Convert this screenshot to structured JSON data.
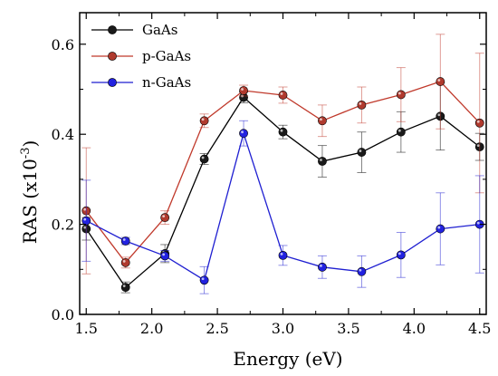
{
  "chart_data": {
    "type": "scatter",
    "xlabel": "Energy (eV)",
    "ylabel_main": "RAS (x10",
    "ylabel_sup": "-3",
    "ylabel_close": ")",
    "xlim": [
      1.45,
      4.55
    ],
    "ylim": [
      0.0,
      0.67
    ],
    "xticks": [
      1.5,
      2.0,
      2.5,
      3.0,
      3.5,
      4.0,
      4.5
    ],
    "xtick_labels": [
      "1.5",
      "2.0",
      "2.5",
      "3.0",
      "3.5",
      "4.0",
      "4.5"
    ],
    "xticks_minor": [
      1.75,
      2.25,
      2.75,
      3.25,
      3.75,
      4.25
    ],
    "yticks": [
      0.0,
      0.2,
      0.4,
      0.6
    ],
    "ytick_labels": [
      "0.0",
      "0.2",
      "0.4",
      "0.6"
    ],
    "yticks_minor": [
      0.1,
      0.3,
      0.5
    ],
    "grid": false,
    "legend_position": "top-left",
    "x": [
      1.5,
      1.8,
      2.1,
      2.4,
      2.7,
      3.0,
      3.3,
      3.6,
      3.9,
      4.2,
      4.5
    ],
    "series": [
      {
        "name": "GaAs",
        "color": "#000000",
        "marker_color": "#1a1a1a",
        "values": [
          0.19,
          0.06,
          0.135,
          0.345,
          0.482,
          0.405,
          0.34,
          0.36,
          0.405,
          0.44,
          0.372
        ],
        "errors": [
          0.025,
          0.012,
          0.02,
          0.012,
          0.012,
          0.015,
          0.035,
          0.045,
          0.045,
          0.075,
          0.03
        ]
      },
      {
        "name": "p-GaAs",
        "color": "#c0392b",
        "marker_color": "#b03a2e",
        "values": [
          0.23,
          0.115,
          0.215,
          0.43,
          0.497,
          0.487,
          0.43,
          0.465,
          0.488,
          0.517,
          0.425
        ],
        "errors": [
          0.14,
          0.012,
          0.015,
          0.015,
          0.012,
          0.018,
          0.035,
          0.04,
          0.06,
          0.105,
          0.155
        ]
      },
      {
        "name": "n-GaAs",
        "color": "#1f1fd1",
        "marker_color": "#2222e0",
        "values": [
          0.208,
          0.163,
          0.13,
          0.076,
          0.402,
          0.131,
          0.105,
          0.095,
          0.132,
          0.19,
          0.2
        ],
        "errors": [
          0.09,
          0.008,
          0.012,
          0.03,
          0.028,
          0.022,
          0.025,
          0.035,
          0.05,
          0.08,
          0.108
        ]
      }
    ]
  }
}
